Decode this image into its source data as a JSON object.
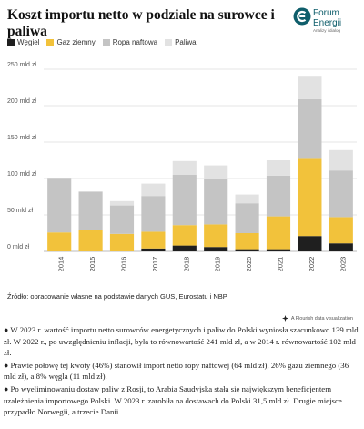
{
  "header": {
    "title": "Koszt importu netto w podziale na surowce i paliwa",
    "logo_name": "Forum Energii",
    "logo_tagline": "Analizy i dialog"
  },
  "colors": {
    "coal": "#1f1f1f",
    "gas": "#f2c23b",
    "oil": "#c4c4c4",
    "fuels": "#e2e2e2",
    "brand": "#0f5e6b"
  },
  "chart_data": {
    "type": "bar",
    "stacked": true,
    "title": "Koszt importu netto w podziale na surowce i paliwa",
    "xlabel": "",
    "ylabel": "",
    "categories": [
      "2014",
      "2015",
      "2016",
      "2017",
      "2018",
      "2019",
      "2020",
      "2021",
      "2022",
      "2023"
    ],
    "yticks": [
      "0 mld zł",
      "50 mld zł",
      "100 mld zł",
      "150 mld zł",
      "200 mld zł",
      "250 mld zł"
    ],
    "ylim": [
      0,
      250
    ],
    "grid": true,
    "legend_position": "top-left",
    "series": [
      {
        "name": "Węgiel",
        "color_key": "coal",
        "values": [
          0,
          0,
          0,
          4,
          8,
          6,
          3,
          3,
          21,
          11
        ]
      },
      {
        "name": "Gaz ziemny",
        "color_key": "gas",
        "values": [
          26,
          29,
          24,
          23,
          28,
          31,
          22,
          45,
          106,
          36
        ]
      },
      {
        "name": "Ropa naftowa",
        "color_key": "oil",
        "values": [
          75,
          53,
          39,
          49,
          69,
          63,
          41,
          56,
          82,
          64
        ]
      },
      {
        "name": "Paliwa",
        "color_key": "fuels",
        "values": [
          0,
          0,
          6,
          17,
          19,
          18,
          12,
          21,
          32,
          28
        ]
      }
    ]
  },
  "source": "Źródło: opracowanie własne na podstawie danych GUS, Eurostatu i NBP",
  "flourish": "A Flourish data visualization",
  "notes": [
    "● W 2023 r. wartość importu netto surowców energetycznych i paliw do Polski wyniosła szacunkowo 139 mld zł. W 2022 r., po uwzględnieniu inflacji, była to równowartość 241 mld zł, a w 2014 r. równowartość 102 mld zł.",
    "● Prawie połowę tej kwoty (46%) stanowił import netto ropy naftowej (64 mld zł), 26% gazu ziemnego (36 mld zł), a 8% węgla (11 mld zł).",
    "● Po wyeliminowaniu dostaw paliw z Rosji, to Arabia Saudyjska stała się największym beneficjentem uzależnienia importowego Polski. W 2023 r. zarobiła na dostawach do Polski 31,5 mld zł. Drugie miejsce przypadło Norwegii, a trzecie Danii."
  ]
}
